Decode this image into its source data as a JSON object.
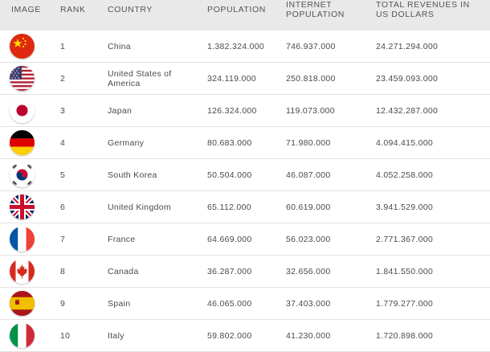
{
  "headers": {
    "image": "IMAGE",
    "rank": "RANK",
    "country": "COUNTRY",
    "population": "POPULATION",
    "internet_population": "INTERNET POPULATION",
    "total_revenues": "TOTAL REVENUES IN US DOLLARS"
  },
  "rows": [
    {
      "flag": "china-flag-icon",
      "rank": "1",
      "country": "China",
      "population": "1.382.324.000",
      "internet_population": "746.937.000",
      "revenues": "24.271.294.000"
    },
    {
      "flag": "usa-flag-icon",
      "rank": "2",
      "country": "United States of America",
      "population": "324.119.000",
      "internet_population": "250.818.000",
      "revenues": "23.459.093.000"
    },
    {
      "flag": "japan-flag-icon",
      "rank": "3",
      "country": "Japan",
      "population": "126.324.000",
      "internet_population": "119.073.000",
      "revenues": "12.432.287.000"
    },
    {
      "flag": "germany-flag-icon",
      "rank": "4",
      "country": "Germany",
      "population": "80.683.000",
      "internet_population": "71.980.000",
      "revenues": "4.094.415.000"
    },
    {
      "flag": "south-korea-flag-icon",
      "rank": "5",
      "country": "South Korea",
      "population": "50.504.000",
      "internet_population": "46.087.000",
      "revenues": "4.052.258.000"
    },
    {
      "flag": "uk-flag-icon",
      "rank": "6",
      "country": "United Kingdom",
      "population": "65.112.000",
      "internet_population": "60.619.000",
      "revenues": "3.941.529.000"
    },
    {
      "flag": "france-flag-icon",
      "rank": "7",
      "country": "France",
      "population": "64.669.000",
      "internet_population": "56.023.000",
      "revenues": "2.771.367.000"
    },
    {
      "flag": "canada-flag-icon",
      "rank": "8",
      "country": "Canada",
      "population": "36.287.000",
      "internet_population": "32.656.000",
      "revenues": "1.841.550.000"
    },
    {
      "flag": "spain-flag-icon",
      "rank": "9",
      "country": "Spain",
      "population": "46.065.000",
      "internet_population": "37.403.000",
      "revenues": "1.779.277.000"
    },
    {
      "flag": "italy-flag-icon",
      "rank": "10",
      "country": "Italy",
      "population": "59.802.000",
      "internet_population": "41.230.000",
      "revenues": "1.720.898.000"
    }
  ]
}
